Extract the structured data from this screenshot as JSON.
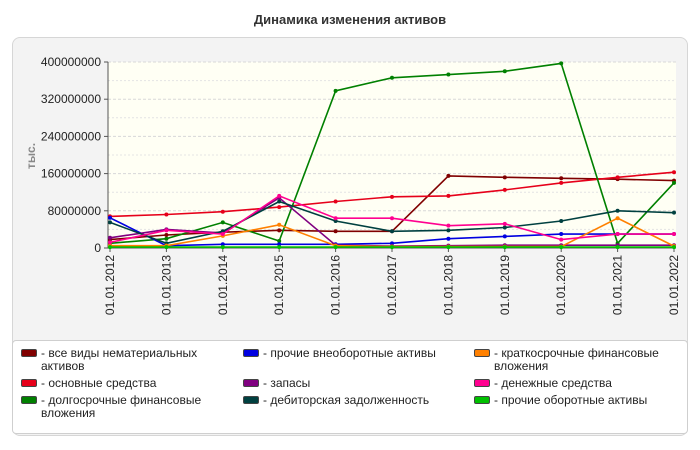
{
  "chart_data": {
    "type": "line",
    "title": "Динамика изменения активов",
    "ylabel": "тыс.",
    "xlabel": "",
    "ylim": [
      0,
      400000000
    ],
    "yticks": [
      "400000000",
      "320000000",
      "240000000",
      "160000000",
      "80000000",
      "0"
    ],
    "ytick_values": [
      400000000,
      320000000,
      240000000,
      160000000,
      80000000,
      0
    ],
    "categories": [
      "01.01.2012",
      "01.01.2013",
      "01.01.2014",
      "01.01.2015",
      "01.01.2016",
      "01.01.2017",
      "01.01.2018",
      "01.01.2019",
      "01.01.2020",
      "01.01.2021",
      "01.01.2022"
    ],
    "grid": true,
    "legend_position": "bottom",
    "series": [
      {
        "name": "- все виды нематериальных активов",
        "color": "#800000",
        "values": [
          18000000,
          28000000,
          34000000,
          38000000,
          36000000,
          36000000,
          155000000,
          152000000,
          150000000,
          148000000,
          145000000
        ]
      },
      {
        "name": "- основные средства",
        "color": "#e6001a",
        "values": [
          68000000,
          72000000,
          78000000,
          88000000,
          100000000,
          110000000,
          112000000,
          125000000,
          140000000,
          152000000,
          163000000
        ]
      },
      {
        "name": "- долгосрочные финансовые вложения",
        "color": "#008000",
        "values": [
          10000000,
          20000000,
          55000000,
          15000000,
          338000000,
          366000000,
          373000000,
          380000000,
          397000000,
          10000000,
          140000000
        ]
      },
      {
        "name": "- прочие внеоборотные активы",
        "color": "#0000e0",
        "values": [
          65000000,
          5000000,
          8000000,
          8000000,
          8000000,
          10000000,
          20000000,
          25000000,
          30000000,
          30000000,
          30000000
        ]
      },
      {
        "name": "- запасы",
        "color": "#800080",
        "values": [
          22000000,
          40000000,
          32000000,
          108000000,
          6000000,
          4000000,
          5000000,
          6000000,
          6000000,
          6000000,
          6000000
        ]
      },
      {
        "name": "- дебиторская задолженность",
        "color": "#004040",
        "values": [
          55000000,
          10000000,
          36000000,
          100000000,
          58000000,
          36000000,
          38000000,
          44000000,
          58000000,
          80000000,
          76000000
        ]
      },
      {
        "name": "- краткосрочные финансовые вложения",
        "color": "#ff8000",
        "values": [
          5000000,
          5000000,
          26000000,
          50000000,
          5000000,
          3000000,
          3000000,
          3000000,
          3000000,
          64000000,
          4000000
        ]
      },
      {
        "name": "- денежные средства",
        "color": "#ff0090",
        "values": [
          12000000,
          38000000,
          30000000,
          112000000,
          64000000,
          64000000,
          48000000,
          52000000,
          18000000,
          30000000,
          30000000
        ]
      },
      {
        "name": "- прочие оборотные активы",
        "color": "#00c000",
        "values": [
          2000000,
          2000000,
          2000000,
          2000000,
          2000000,
          2000000,
          2000000,
          2000000,
          2000000,
          2000000,
          2000000
        ]
      }
    ]
  }
}
